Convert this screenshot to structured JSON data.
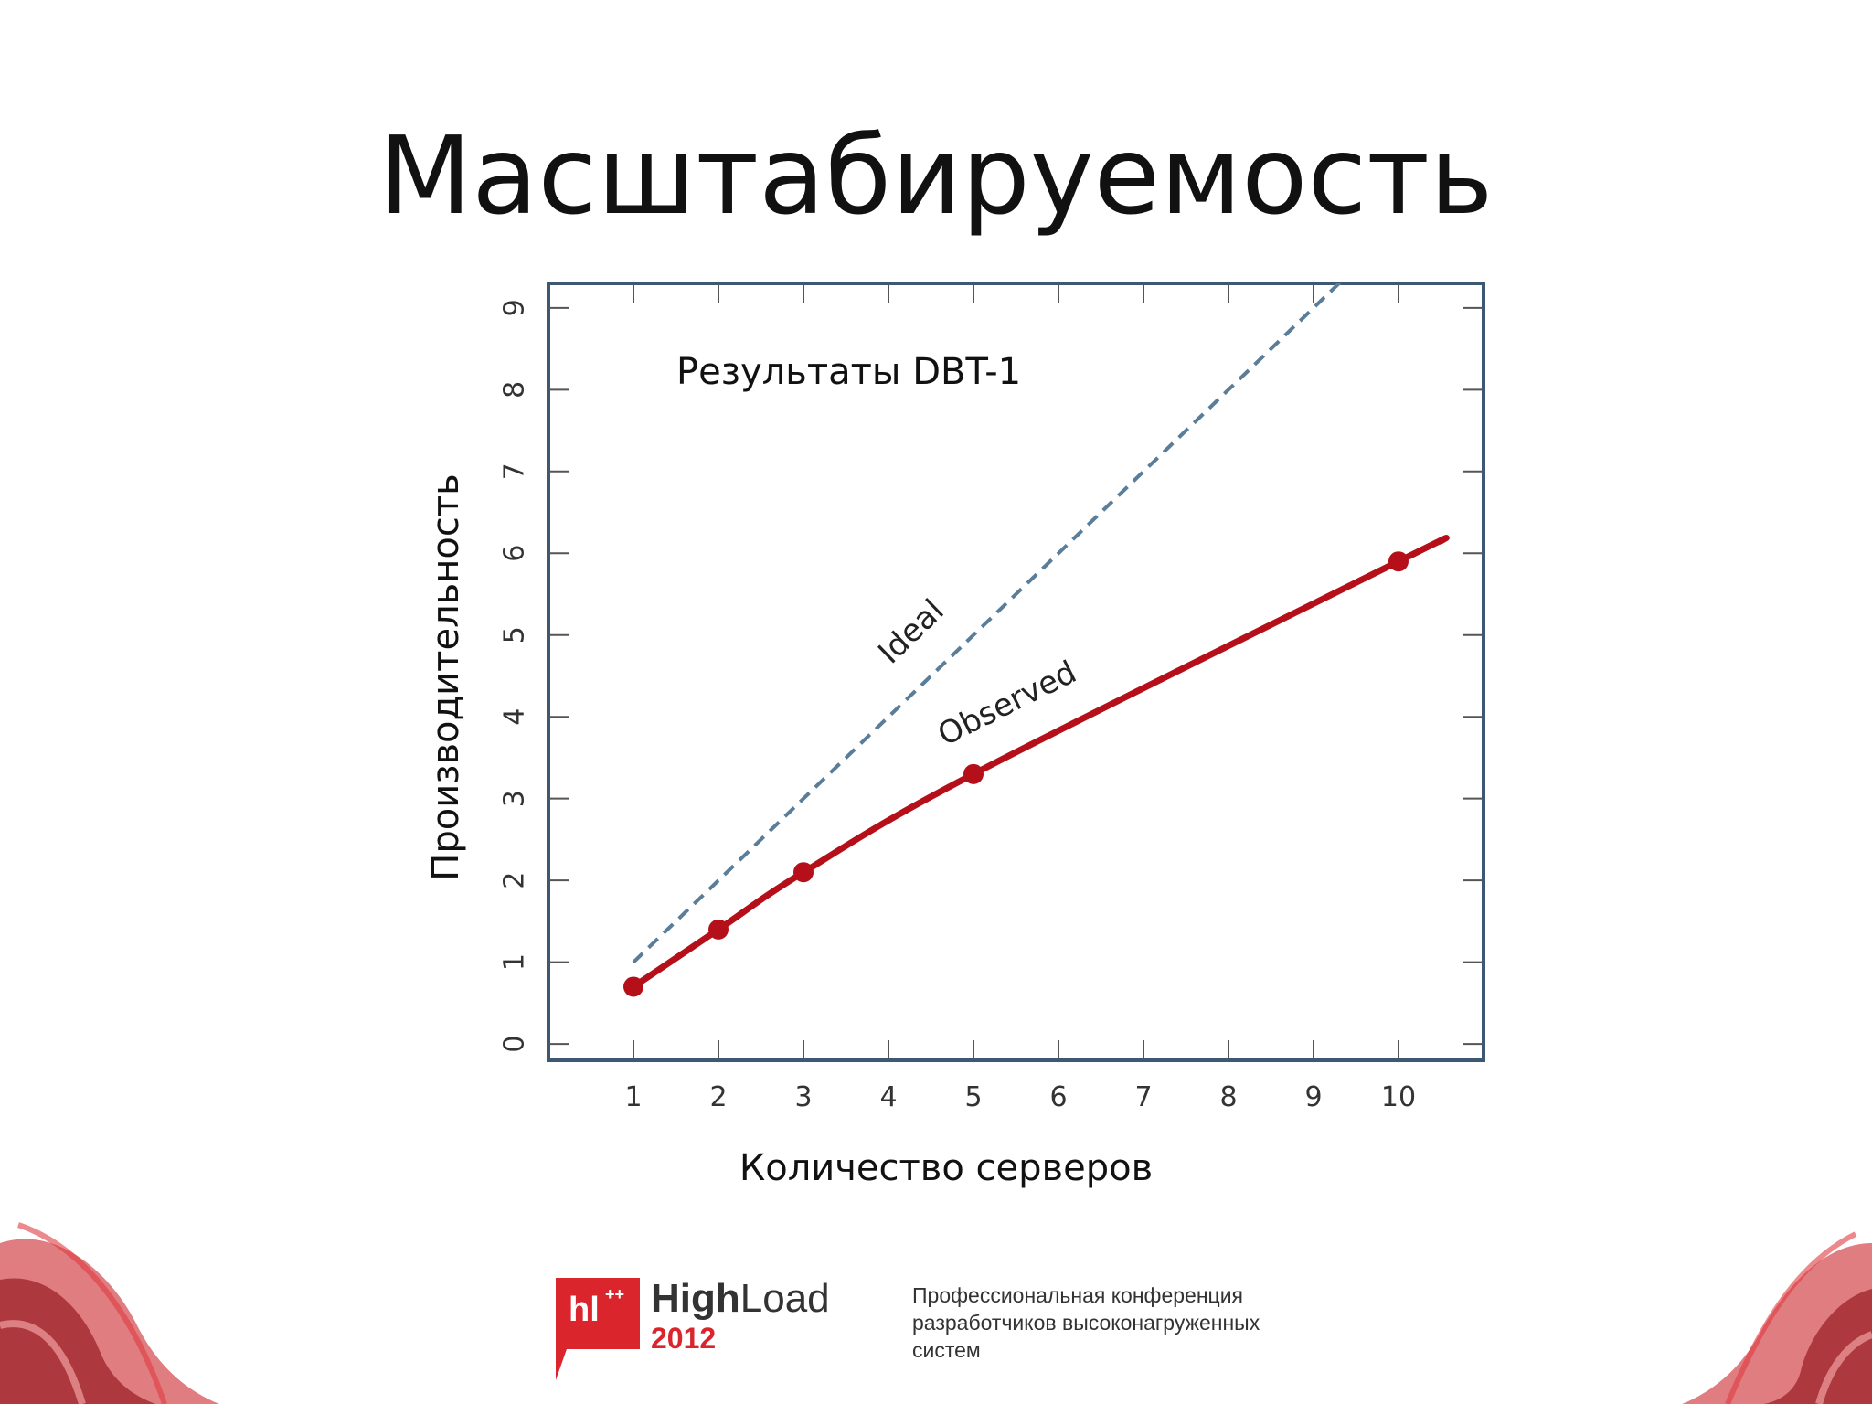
{
  "slide": {
    "title": "Масштабируемость"
  },
  "chart_data": {
    "type": "line",
    "subtitle": "Результаты DBT-1",
    "xlabel": "Количество серверов",
    "ylabel": "Производительность",
    "x_ticks": [
      1,
      2,
      3,
      4,
      5,
      6,
      7,
      8,
      9,
      10
    ],
    "y_ticks": [
      0,
      1,
      2,
      3,
      4,
      5,
      6,
      7,
      8,
      9
    ],
    "xlim": [
      0,
      11
    ],
    "ylim": [
      -0.2,
      9.3
    ],
    "grid": false,
    "series": [
      {
        "name": "Ideal",
        "style": "dashed",
        "color": "#5a7d99",
        "x": [
          1,
          10
        ],
        "y": [
          1,
          10
        ]
      },
      {
        "name": "Observed",
        "style": "solid",
        "color": "#b5101a",
        "x": [
          1,
          2,
          3,
          5,
          10
        ],
        "y": [
          0.7,
          1.4,
          2.1,
          3.3,
          5.9
        ],
        "line_end": {
          "x": 10.5,
          "y": 6.15
        }
      }
    ]
  },
  "footer": {
    "logo_mark": "hl",
    "logo_sup": "++",
    "logo_name_bold": "High",
    "logo_name_rest": "Load",
    "year": "2012",
    "conference_lines": [
      "Профессиональная конференция",
      "разработчиков высоконагруженных",
      "систем"
    ]
  }
}
